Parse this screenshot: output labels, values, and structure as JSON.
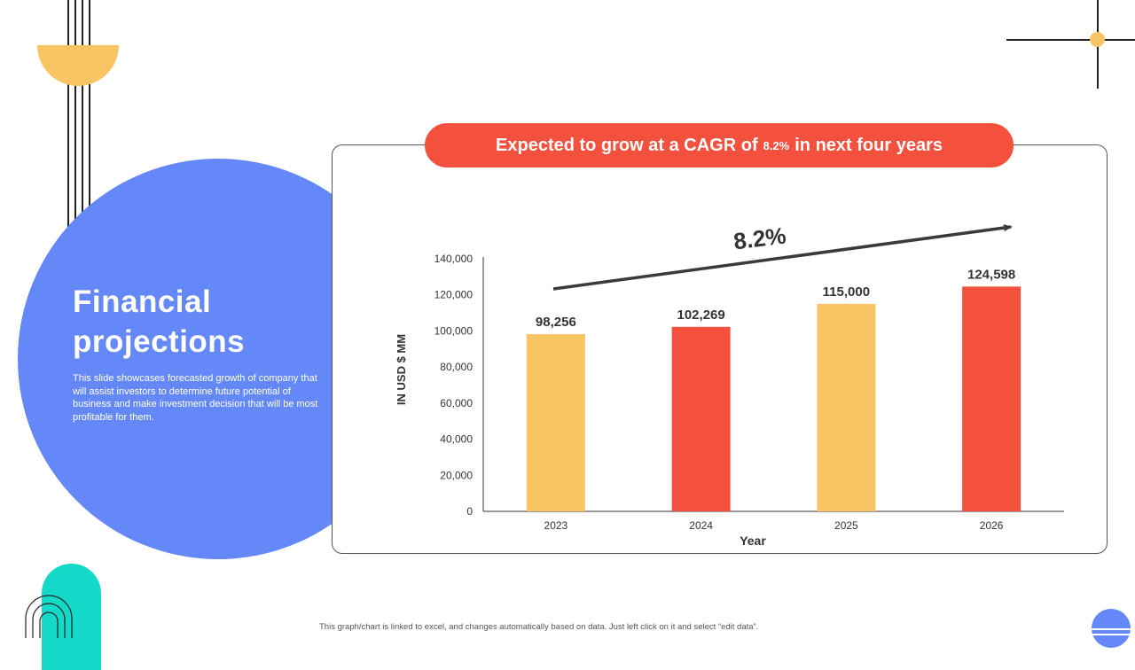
{
  "slide": {
    "title_line1": "Financial",
    "title_line2": "projections",
    "description": "This slide showcases forecasted growth of company that will assist investors to determine future potential of business and make investment decision that will be most profitable for them.",
    "footnote": "This graph/chart is linked to excel, and changes automatically based on data. Just left click on it and select “edit data”."
  },
  "banner": {
    "prefix": "Expected to grow at a CAGR of",
    "percent": "8.2%",
    "suffix": "in next four years"
  },
  "colors": {
    "yellow": "#f9c464",
    "red": "#f3513d",
    "blue": "#6488f7",
    "teal": "#14d9c8"
  },
  "chart_data": {
    "type": "bar",
    "title": "",
    "categories": [
      "2023",
      "2024",
      "2025",
      "2026"
    ],
    "values": [
      98256,
      102269,
      115000,
      124598
    ],
    "value_labels": [
      "98,256",
      "102,269",
      "115,000",
      "124,598"
    ],
    "bar_colors": [
      "#f9c464",
      "#f3513d",
      "#f9c464",
      "#f3513d"
    ],
    "xlabel": "Year",
    "ylabel": "IN USD $ MM",
    "ylim": [
      0,
      140000
    ],
    "yticks": [
      0,
      20000,
      40000,
      60000,
      80000,
      100000,
      120000,
      140000
    ],
    "ytick_labels": [
      "0",
      "20,000",
      "40,000",
      "60,000",
      "80,000",
      "100,000",
      "120,000",
      "140,000"
    ],
    "grid": false,
    "annotation": "8.2%"
  }
}
